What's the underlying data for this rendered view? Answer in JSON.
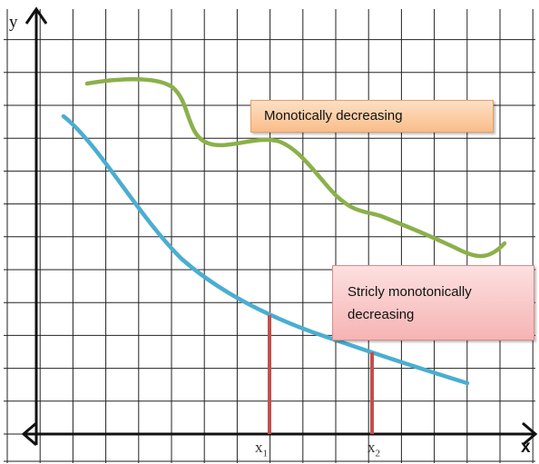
{
  "axes": {
    "x_label": "x",
    "y_label": "y"
  },
  "ticks": {
    "x1": {
      "base": "x",
      "sub": "1"
    },
    "x2": {
      "base": "x",
      "sub": "2"
    }
  },
  "labels": {
    "monotonic": "Monotically decreasing",
    "strict_line1": "Stricly monotonically",
    "strict_line2": "decreasing"
  },
  "colors": {
    "grid": "#222222",
    "monotonic_curve": "#8bb04a",
    "strict_curve": "#4aaed0",
    "markers": "#c0504d",
    "monotonic_label_bg": "#f9bd8a",
    "strict_label_bg": "#f6b4b4"
  }
}
